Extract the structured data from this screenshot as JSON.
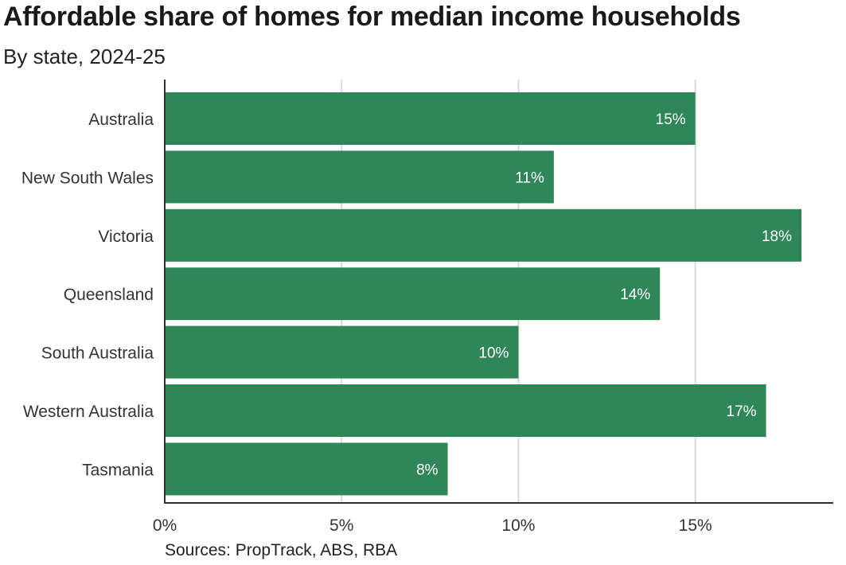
{
  "chart_data": {
    "type": "bar",
    "orientation": "horizontal",
    "title": "Affordable share of homes for median income households",
    "subtitle": "By state, 2024-25",
    "source": "Sources: PropTrack, ABS, RBA",
    "categories": [
      "Australia",
      "New South Wales",
      "Victoria",
      "Queensland",
      "South Australia",
      "Western Australia",
      "Tasmania"
    ],
    "values": [
      15,
      11,
      18,
      14,
      10,
      17,
      8
    ],
    "value_labels": [
      "15%",
      "11%",
      "18%",
      "14%",
      "10%",
      "17%",
      "8%"
    ],
    "xlim": [
      0,
      18.9
    ],
    "xticks": [
      0,
      5,
      10,
      15
    ],
    "xtick_labels": [
      "0%",
      "5%",
      "10%",
      "15%"
    ],
    "grid": true,
    "bar_color": "#2e8659",
    "grid_color": "#d9d9d9",
    "axis_color": "#333333"
  }
}
